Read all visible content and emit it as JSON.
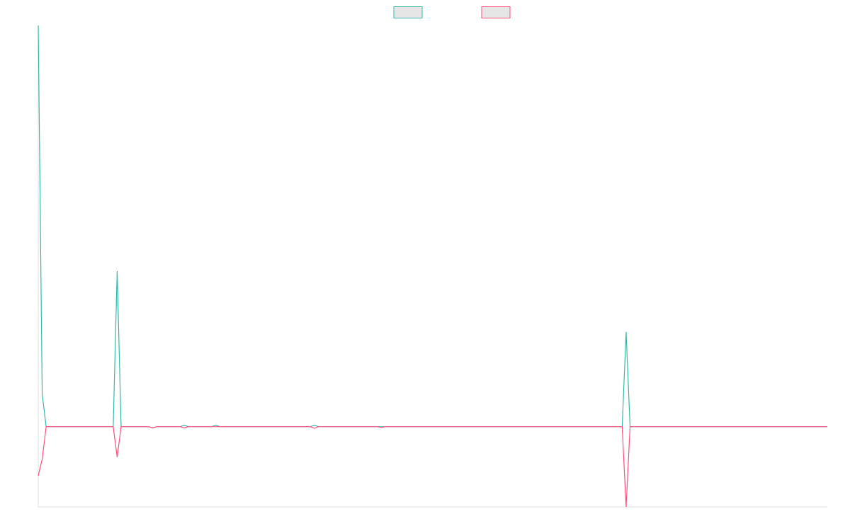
{
  "chart_data": {
    "type": "line",
    "x": [
      0,
      1,
      2,
      19,
      20,
      21,
      28,
      29,
      30,
      36,
      37,
      38,
      44,
      45,
      46,
      69,
      70,
      71,
      86,
      87,
      88,
      148,
      149,
      150,
      200
    ],
    "series": [
      {
        "color": "#36b9a8",
        "values": [
          100,
          8.1,
          0,
          0,
          38.8,
          0,
          0,
          -0.3,
          0,
          0,
          0.4,
          0,
          0,
          0.4,
          0,
          0,
          0.4,
          0,
          0,
          0,
          0,
          0,
          23.6,
          0,
          0
        ]
      },
      {
        "color": "#ff4f7b",
        "values": [
          -12.2,
          -8.1,
          0,
          0,
          -7.6,
          0,
          0,
          -0.3,
          0,
          0,
          -0.3,
          0,
          0,
          0,
          0,
          0,
          -0.4,
          0,
          0,
          -0.2,
          0,
          0,
          -20,
          0,
          0
        ]
      }
    ],
    "xlim": [
      0,
      200
    ],
    "ylim": [
      -20,
      100
    ],
    "legend": "top"
  }
}
